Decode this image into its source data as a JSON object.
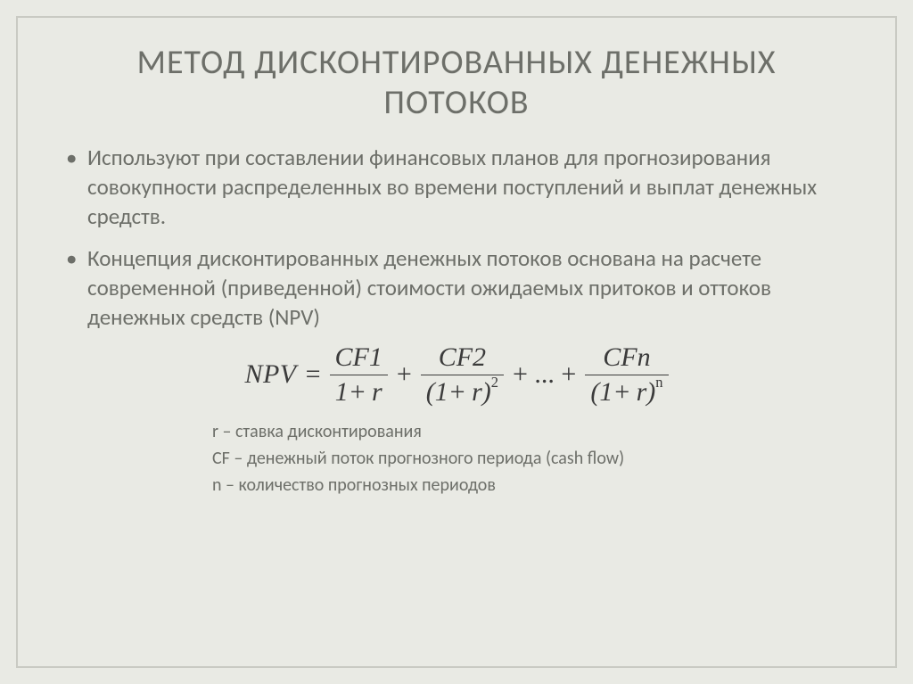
{
  "slide": {
    "background_color": "#e9eae4",
    "frame_border_color": "#c9cac3",
    "text_color": "#6d6f69",
    "formula_color": "#3b3b3b",
    "title": "МЕТОД ДИСКОНТИРОВАННЫХ ДЕНЕЖНЫХ ПОТОКОВ",
    "title_fontsize": 38,
    "body_fontsize": 25,
    "legend_fontsize": 20,
    "bullets": [
      "Используют при составлении финансовых планов для прогнозирования совокупности распределенных во времени поступлений и выплат денежных средств.",
      "Концепция дисконтированных денежных потоков основана на расчете современной (приведенной) стоимости ожидаемых притоков и оттоков денежных средств (NPV)"
    ],
    "formula": {
      "lhs": "NPV",
      "eq": "=",
      "plus": "+",
      "dots": "+ ... +",
      "terms": [
        {
          "num": "CF1",
          "den_open": "1",
          "den_r": "r",
          "exp": ""
        },
        {
          "num": "CF2",
          "den_open": "(1",
          "den_r": "r",
          "den_close": ")",
          "exp": "2"
        },
        {
          "num": "CFn",
          "den_open": "(1",
          "den_r": "r",
          "den_close": ")",
          "exp": "n"
        }
      ]
    },
    "legend": [
      "r – ставка дисконтирования",
      "CF – денежный поток прогнозного периода (cash flow)",
      "n – количество прогнозных периодов"
    ]
  }
}
